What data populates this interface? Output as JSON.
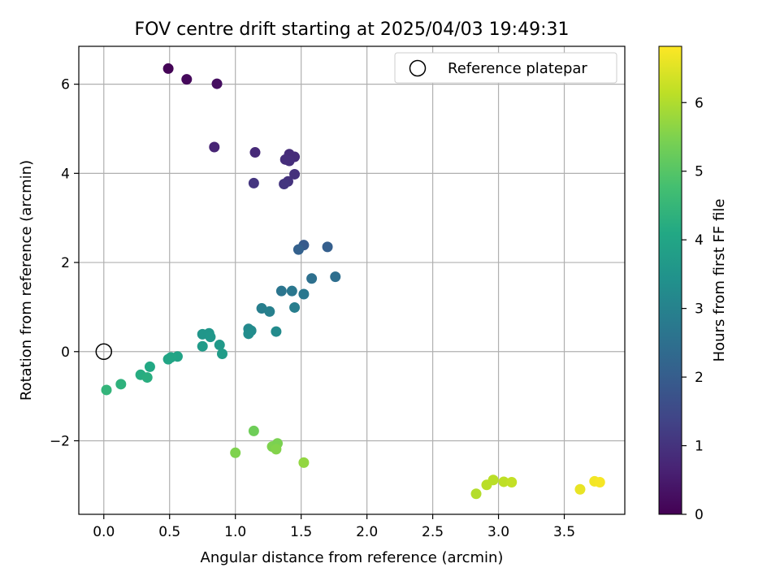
{
  "chart_data": {
    "type": "scatter",
    "title": "FOV centre drift starting at 2025/04/03 19:49:31",
    "xlabel": "Angular distance from reference (arcmin)",
    "ylabel": "Rotation from reference (arcmin)",
    "xlim": [
      -0.19,
      3.96
    ],
    "ylim": [
      -3.65,
      6.85
    ],
    "xticks": [
      0.0,
      0.5,
      1.0,
      1.5,
      2.0,
      2.5,
      3.0,
      3.5
    ],
    "xtick_labels": [
      "0.0",
      "0.5",
      "1.0",
      "1.5",
      "2.0",
      "2.5",
      "3.0",
      "3.5"
    ],
    "yticks": [
      -2,
      0,
      2,
      4,
      6
    ],
    "ytick_labels": [
      "−2",
      "0",
      "2",
      "4",
      "6"
    ],
    "grid": true,
    "legend": {
      "position": "top-right",
      "entries": [
        "Reference platepar"
      ]
    },
    "reference_point": {
      "x": 0.0,
      "y": 0.0
    },
    "colorbar": {
      "label": "Hours from first FF file",
      "range": [
        0,
        6.82
      ],
      "ticks": [
        0,
        1,
        2,
        3,
        4,
        5,
        6
      ],
      "tick_labels": [
        "0",
        "1",
        "2",
        "3",
        "4",
        "5",
        "6"
      ],
      "colormap": "viridis"
    },
    "points": [
      {
        "x": 0.49,
        "y": 6.35,
        "c": 0.05
      },
      {
        "x": 0.63,
        "y": 6.11,
        "c": 0.15
      },
      {
        "x": 0.86,
        "y": 6.01,
        "c": 0.25
      },
      {
        "x": 0.84,
        "y": 4.59,
        "c": 0.7
      },
      {
        "x": 1.15,
        "y": 4.47,
        "c": 0.8
      },
      {
        "x": 1.41,
        "y": 4.43,
        "c": 0.85
      },
      {
        "x": 1.45,
        "y": 4.37,
        "c": 0.85
      },
      {
        "x": 1.38,
        "y": 4.31,
        "c": 0.9
      },
      {
        "x": 1.41,
        "y": 4.28,
        "c": 0.9
      },
      {
        "x": 1.45,
        "y": 3.98,
        "c": 0.95
      },
      {
        "x": 1.4,
        "y": 3.82,
        "c": 1.0
      },
      {
        "x": 1.37,
        "y": 3.76,
        "c": 1.05
      },
      {
        "x": 1.14,
        "y": 3.78,
        "c": 1.05
      },
      {
        "x": 1.52,
        "y": 2.39,
        "c": 1.95
      },
      {
        "x": 1.7,
        "y": 2.35,
        "c": 2.05
      },
      {
        "x": 1.48,
        "y": 2.29,
        "c": 2.1
      },
      {
        "x": 1.76,
        "y": 1.68,
        "c": 2.45
      },
      {
        "x": 1.58,
        "y": 1.64,
        "c": 2.5
      },
      {
        "x": 1.35,
        "y": 1.36,
        "c": 2.65
      },
      {
        "x": 1.43,
        "y": 1.36,
        "c": 2.7
      },
      {
        "x": 1.52,
        "y": 1.29,
        "c": 2.7
      },
      {
        "x": 1.2,
        "y": 0.97,
        "c": 2.9
      },
      {
        "x": 1.26,
        "y": 0.9,
        "c": 2.95
      },
      {
        "x": 1.45,
        "y": 0.99,
        "c": 2.9
      },
      {
        "x": 1.1,
        "y": 0.51,
        "c": 3.2
      },
      {
        "x": 1.12,
        "y": 0.47,
        "c": 3.25
      },
      {
        "x": 1.31,
        "y": 0.45,
        "c": 3.25
      },
      {
        "x": 1.1,
        "y": 0.4,
        "c": 3.3
      },
      {
        "x": 0.75,
        "y": 0.39,
        "c": 3.55
      },
      {
        "x": 0.8,
        "y": 0.41,
        "c": 3.55
      },
      {
        "x": 0.81,
        "y": 0.33,
        "c": 3.6
      },
      {
        "x": 0.75,
        "y": 0.12,
        "c": 3.7
      },
      {
        "x": 0.88,
        "y": 0.15,
        "c": 3.65
      },
      {
        "x": 0.9,
        "y": -0.05,
        "c": 3.75
      },
      {
        "x": 0.56,
        "y": -0.11,
        "c": 3.95
      },
      {
        "x": 0.51,
        "y": -0.13,
        "c": 4.0
      },
      {
        "x": 0.49,
        "y": -0.17,
        "c": 4.0
      },
      {
        "x": 0.35,
        "y": -0.34,
        "c": 4.1
      },
      {
        "x": 0.28,
        "y": -0.52,
        "c": 4.2
      },
      {
        "x": 0.33,
        "y": -0.58,
        "c": 4.25
      },
      {
        "x": 0.13,
        "y": -0.73,
        "c": 4.35
      },
      {
        "x": 0.02,
        "y": -0.86,
        "c": 4.45
      },
      {
        "x": 1.14,
        "y": -1.78,
        "c": 5.3
      },
      {
        "x": 1.0,
        "y": -2.27,
        "c": 5.5
      },
      {
        "x": 1.28,
        "y": -2.13,
        "c": 5.5
      },
      {
        "x": 1.32,
        "y": -2.06,
        "c": 5.45
      },
      {
        "x": 1.31,
        "y": -2.19,
        "c": 5.55
      },
      {
        "x": 1.52,
        "y": -2.49,
        "c": 5.7
      },
      {
        "x": 2.83,
        "y": -3.19,
        "c": 6.05
      },
      {
        "x": 2.91,
        "y": -2.99,
        "c": 6.1
      },
      {
        "x": 2.96,
        "y": -2.88,
        "c": 6.1
      },
      {
        "x": 3.04,
        "y": -2.92,
        "c": 6.15
      },
      {
        "x": 3.1,
        "y": -2.93,
        "c": 6.2
      },
      {
        "x": 3.62,
        "y": -3.09,
        "c": 6.6
      },
      {
        "x": 3.73,
        "y": -2.91,
        "c": 6.7
      },
      {
        "x": 3.77,
        "y": -2.93,
        "c": 6.75
      }
    ]
  }
}
